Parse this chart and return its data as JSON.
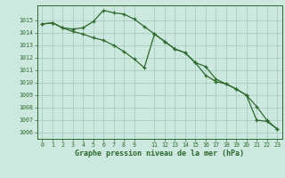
{
  "line1_x": [
    0,
    1,
    2,
    3,
    4,
    5,
    6,
    7,
    8,
    9,
    10,
    11,
    12,
    13,
    14,
    15,
    16,
    17,
    18,
    19,
    20,
    21,
    22,
    23
  ],
  "line1_y": [
    1014.7,
    1014.8,
    1014.4,
    1014.3,
    1014.4,
    1014.9,
    1015.8,
    1015.6,
    1015.5,
    1015.1,
    1014.5,
    1013.9,
    1013.3,
    1012.7,
    1012.4,
    1011.6,
    1011.3,
    1010.3,
    1009.9,
    1009.5,
    1009.0,
    1008.1,
    1007.0,
    1006.3
  ],
  "line2_x": [
    0,
    1,
    2,
    3,
    4,
    5,
    6,
    7,
    8,
    9,
    10,
    11,
    12,
    13,
    14,
    15,
    16,
    17,
    18,
    19,
    20,
    21,
    22,
    23
  ],
  "line2_y": [
    1014.7,
    1014.8,
    1014.4,
    1014.1,
    1013.9,
    1013.6,
    1013.4,
    1013.0,
    1012.5,
    1011.9,
    1011.2,
    1013.9,
    1013.3,
    1012.7,
    1012.4,
    1011.6,
    1010.6,
    1010.1,
    1009.9,
    1009.5,
    1009.0,
    1007.0,
    1006.9,
    1006.3
  ],
  "line_color": "#2d6a2d",
  "bg_color": "#cce8df",
  "grid_color": "#aaccbf",
  "xlabel": "Graphe pression niveau de la mer (hPa)",
  "ylim_min": 1005.5,
  "ylim_max": 1016.2,
  "xlim_min": -0.5,
  "xlim_max": 23.5,
  "yticks": [
    1006,
    1007,
    1008,
    1009,
    1010,
    1011,
    1012,
    1013,
    1014,
    1015
  ],
  "xticks": [
    0,
    1,
    2,
    3,
    4,
    5,
    6,
    7,
    8,
    9,
    11,
    12,
    13,
    14,
    15,
    16,
    17,
    18,
    19,
    20,
    21,
    22,
    23
  ]
}
